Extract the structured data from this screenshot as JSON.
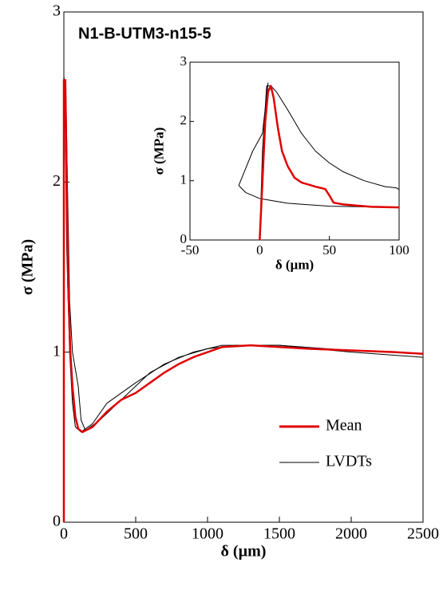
{
  "chart_data": [
    {
      "type": "line",
      "title": "N1-B-UTM3-n15-5",
      "xlabel": "δ (µm)",
      "ylabel": "σ (MPa)",
      "xlim": [
        0,
        2500
      ],
      "xticks": [
        0,
        500,
        1000,
        1500,
        2000,
        2500
      ],
      "ylim": [
        0,
        3
      ],
      "yticks": [
        0,
        1,
        2,
        3
      ],
      "legend": "lower right",
      "series": [
        {
          "name": "LVDTs",
          "color": "#000000",
          "x": [
            0,
            0,
            15,
            25,
            40,
            60,
            80,
            100,
            120,
            150,
            250,
            400,
            600,
            800,
            1000,
            1200,
            1500,
            2000,
            2500
          ],
          "values": [
            0,
            2.62,
            2.5,
            2.0,
            1.3,
            1.0,
            0.9,
            0.8,
            0.6,
            0.54,
            0.6,
            0.72,
            0.88,
            0.97,
            1.02,
            1.04,
            1.04,
            1.0,
            0.97
          ]
        },
        {
          "color": "#000000",
          "x": [
            0,
            0,
            10,
            20,
            40,
            60,
            80,
            120,
            200,
            300,
            500,
            700,
            900,
            1100,
            1500,
            2000,
            2500
          ],
          "values": [
            0,
            2.6,
            2.3,
            1.6,
            1.0,
            0.7,
            0.56,
            0.53,
            0.58,
            0.7,
            0.82,
            0.93,
            1.0,
            1.04,
            1.04,
            1.01,
            0.99
          ]
        },
        {
          "name": "Mean",
          "color": "#e00000",
          "x": [
            0,
            0,
            10,
            20,
            30,
            45,
            60,
            80,
            100,
            130,
            200,
            300,
            400,
            500,
            600,
            700,
            800,
            900,
            1000,
            1100,
            1300,
            1500,
            1700,
            2000,
            2300,
            2500
          ],
          "values": [
            0,
            2.6,
            2.6,
            2.0,
            1.4,
            1.0,
            0.8,
            0.62,
            0.55,
            0.53,
            0.56,
            0.65,
            0.72,
            0.76,
            0.82,
            0.88,
            0.93,
            0.97,
            1.0,
            1.03,
            1.04,
            1.03,
            1.02,
            1.01,
            1.0,
            0.99
          ]
        }
      ]
    },
    {
      "type": "line",
      "xlabel": "δ (µm)",
      "ylabel": "σ (MPa)",
      "xlim": [
        -50,
        100
      ],
      "xticks": [
        -50,
        0,
        50,
        100
      ],
      "ylim": [
        0,
        3
      ],
      "yticks": [
        0,
        1,
        2,
        3
      ],
      "series": [
        {
          "color": "#000000",
          "x": [
            0,
            2,
            5,
            8,
            12,
            20,
            30,
            40,
            50,
            60,
            75,
            90,
            98,
            100,
            100
          ],
          "values": [
            0,
            1.5,
            2.6,
            2.6,
            2.5,
            2.2,
            1.8,
            1.5,
            1.3,
            1.15,
            1.0,
            0.9,
            0.88,
            0.85,
            0.55
          ]
        },
        {
          "color": "#000000",
          "x": [
            0,
            3,
            6,
            2,
            -5,
            -15,
            -10,
            0,
            20,
            50,
            100
          ],
          "values": [
            0,
            1.8,
            2.65,
            1.8,
            1.5,
            0.92,
            0.8,
            0.7,
            0.62,
            0.57,
            0.55
          ]
        },
        {
          "color": "#e00000",
          "x": [
            0,
            2,
            4,
            6,
            8,
            10,
            13,
            16,
            20,
            25,
            30,
            40,
            47,
            50,
            53,
            60,
            80,
            100
          ],
          "values": [
            0,
            1,
            2,
            2.5,
            2.6,
            2.4,
            1.9,
            1.5,
            1.25,
            1.05,
            0.97,
            0.9,
            0.86,
            0.75,
            0.63,
            0.6,
            0.56,
            0.55
          ]
        }
      ]
    }
  ]
}
